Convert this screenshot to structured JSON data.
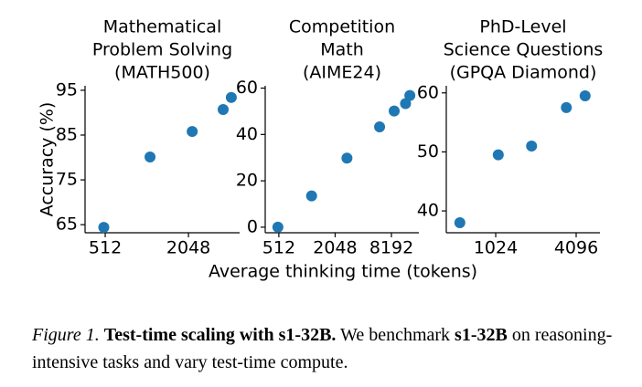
{
  "chart_data": [
    {
      "type": "scatter",
      "title": [
        "Mathematical",
        "Problem Solving",
        "(MATH500)"
      ],
      "ylabel": "Accuracy (%)",
      "xscale": "log",
      "x": [
        500,
        1080,
        2180,
        3650,
        4180
      ],
      "values": [
        64.4,
        80.1,
        85.8,
        90.7,
        93.4
      ],
      "color": "#1f77b4",
      "xlim": [
        366,
        4800
      ],
      "ylim": [
        63.2,
        96
      ],
      "xticks": [
        512,
        2048
      ],
      "yticks": [
        65,
        75,
        85,
        95
      ]
    },
    {
      "type": "scatter",
      "title": [
        "Competition",
        "Math",
        "(AIME24)"
      ],
      "xscale": "log",
      "x": [
        500,
        1147,
        2740,
        6120,
        8770,
        11600,
        12900
      ],
      "values": [
        0,
        13.5,
        29.8,
        43.3,
        50.1,
        53.3,
        56.8
      ],
      "color": "#1f77b4",
      "xlim": [
        366,
        16100
      ],
      "ylim": [
        -2.4,
        61
      ],
      "xticks": [
        512,
        2048,
        8192
      ],
      "yticks": [
        0,
        20,
        40,
        60
      ]
    },
    {
      "type": "scatter",
      "title": [
        "PhD-Level",
        "Science Questions",
        "(GPQA Diamond)"
      ],
      "xscale": "log",
      "x": [
        552,
        1070,
        1900,
        3460,
        4780
      ],
      "values": [
        38.0,
        49.5,
        51.0,
        57.5,
        59.5
      ],
      "color": "#1f77b4",
      "xlim": [
        437,
        6170
      ],
      "ylim": [
        36.3,
        61.2
      ],
      "xticks": [
        1024,
        4096
      ],
      "yticks": [
        40,
        50,
        60
      ]
    }
  ],
  "xlabel": "Average thinking time (tokens)",
  "caption": [
    {
      "style": "i",
      "text": "Figure 1."
    },
    {
      "style": "b",
      "text": "Test-time scaling with s1-32B."
    },
    {
      "style": "n",
      "text": "We benchmark"
    },
    {
      "style": "b",
      "text": "s1-32B"
    },
    {
      "style": "n",
      "text": "on reasoning-intensive tasks and vary test-time compute."
    }
  ]
}
